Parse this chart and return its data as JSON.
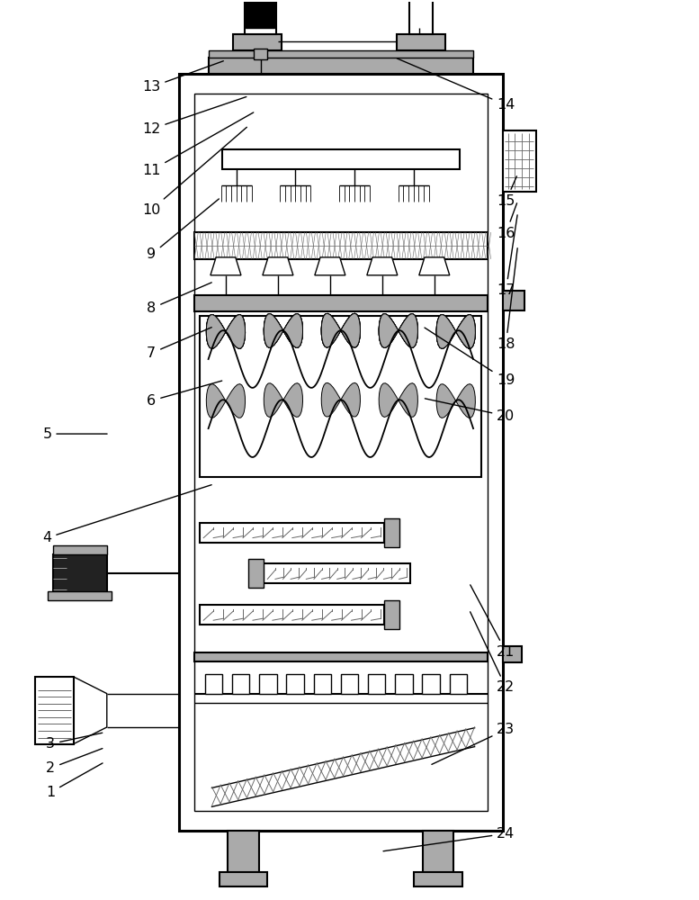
{
  "bg": "#ffffff",
  "lc": "#000000",
  "gc": "#666666",
  "lgc": "#aaaaaa",
  "dgc": "#222222",
  "fig_w": 7.77,
  "fig_h": 10.0,
  "labels_info": [
    [
      1,
      0.07,
      0.118,
      0.148,
      0.152
    ],
    [
      2,
      0.07,
      0.145,
      0.148,
      0.168
    ],
    [
      3,
      0.07,
      0.172,
      0.148,
      0.185
    ],
    [
      4,
      0.065,
      0.402,
      0.305,
      0.462
    ],
    [
      5,
      0.065,
      0.518,
      0.155,
      0.518
    ],
    [
      6,
      0.215,
      0.555,
      0.32,
      0.578
    ],
    [
      7,
      0.215,
      0.608,
      0.305,
      0.638
    ],
    [
      8,
      0.215,
      0.658,
      0.305,
      0.688
    ],
    [
      9,
      0.215,
      0.718,
      0.315,
      0.782
    ],
    [
      10,
      0.215,
      0.768,
      0.355,
      0.862
    ],
    [
      11,
      0.215,
      0.812,
      0.365,
      0.878
    ],
    [
      12,
      0.215,
      0.858,
      0.355,
      0.895
    ],
    [
      13,
      0.215,
      0.905,
      0.322,
      0.935
    ],
    [
      14,
      0.725,
      0.885,
      0.565,
      0.938
    ],
    [
      15,
      0.725,
      0.778,
      0.742,
      0.808
    ],
    [
      16,
      0.725,
      0.742,
      0.742,
      0.778
    ],
    [
      17,
      0.725,
      0.678,
      0.742,
      0.765
    ],
    [
      18,
      0.725,
      0.618,
      0.742,
      0.728
    ],
    [
      19,
      0.725,
      0.578,
      0.605,
      0.638
    ],
    [
      20,
      0.725,
      0.538,
      0.605,
      0.558
    ],
    [
      21,
      0.725,
      0.275,
      0.672,
      0.352
    ],
    [
      22,
      0.725,
      0.235,
      0.672,
      0.322
    ],
    [
      23,
      0.725,
      0.188,
      0.615,
      0.148
    ],
    [
      24,
      0.725,
      0.072,
      0.545,
      0.052
    ]
  ]
}
